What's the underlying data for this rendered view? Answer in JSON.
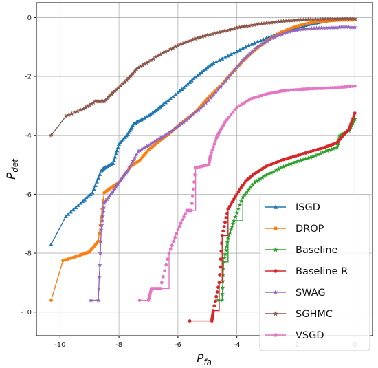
{
  "chart_data": {
    "type": "line",
    "xlabel": "P",
    "xlabel_sub": "fa",
    "ylabel": "P",
    "ylabel_sub": "det",
    "xlim": [
      -10.8,
      0.6
    ],
    "ylim": [
      -10.8,
      0.5
    ],
    "grid": true,
    "legend_position": "bottom-right",
    "x_ticks": [
      -10,
      -8,
      -6,
      -4,
      -2,
      0
    ],
    "y_ticks": [
      -10,
      -8,
      -6,
      -4,
      -2,
      0
    ],
    "series": [
      {
        "name": " ISGD",
        "color": "#1f77b4",
        "marker": "triangle",
        "x": [
          -10.3,
          -9.8,
          -9.3,
          -8.9,
          -8.6,
          -8.5,
          -8.2,
          -8.0,
          -7.7,
          -7.5,
          -7.2,
          -6.8,
          -6.5,
          -6.0,
          -5.6,
          -5.2,
          -4.8,
          -4.2,
          -3.6,
          -3.0,
          -2.5,
          -2.0,
          -1.5,
          -1.0,
          -0.5,
          0.0
        ],
        "y": [
          -7.7,
          -6.75,
          -6.3,
          -5.95,
          -5.2,
          -5.1,
          -4.95,
          -4.3,
          -3.95,
          -3.6,
          -3.45,
          -3.2,
          -2.95,
          -2.55,
          -2.2,
          -1.85,
          -1.55,
          -1.25,
          -0.95,
          -0.7,
          -0.5,
          -0.35,
          -0.22,
          -0.12,
          -0.06,
          -0.05
        ]
      },
      {
        "name": "DROP",
        "color": "#ff7f0e",
        "marker": "circle",
        "x": [
          -10.3,
          -9.9,
          -9.4,
          -9.0,
          -8.7,
          -8.5,
          -8.3,
          -8.0,
          -7.6,
          -7.3,
          -7.0,
          -6.7,
          -6.3,
          -5.9,
          -5.4,
          -5.0,
          -4.5,
          -4.0,
          -3.5,
          -3.0,
          -2.5,
          -2.0,
          -1.5,
          -1.0,
          -0.5,
          0.0
        ],
        "y": [
          -9.6,
          -8.25,
          -8.1,
          -7.95,
          -7.6,
          -5.95,
          -5.8,
          -5.6,
          -5.05,
          -4.85,
          -4.5,
          -4.25,
          -3.95,
          -3.6,
          -3.2,
          -2.75,
          -2.25,
          -1.7,
          -1.2,
          -0.8,
          -0.5,
          -0.3,
          -0.18,
          -0.12,
          -0.09,
          -0.08
        ]
      },
      {
        "name": "Baseline",
        "color": "#2ca02c",
        "marker": "star",
        "x": [
          -4.65,
          -4.5,
          -4.45,
          -4.3,
          -4.1,
          -3.8,
          -3.4,
          -3.0,
          -2.5,
          -2.0,
          -1.5,
          -1.0,
          -0.6,
          -0.5,
          -0.2,
          0.0
        ],
        "y": [
          -9.6,
          -9.6,
          -8.3,
          -7.5,
          -6.9,
          -6.1,
          -5.6,
          -5.35,
          -5.1,
          -4.9,
          -4.75,
          -4.55,
          -4.4,
          -4.0,
          -3.85,
          -3.45
        ]
      },
      {
        "name": "Baseline R",
        "color": "#d62728",
        "marker": "circle",
        "x": [
          -5.6,
          -4.85,
          -4.8,
          -4.6,
          -4.5,
          -4.3,
          -4.0,
          -3.7,
          -3.4,
          -3.0,
          -2.5,
          -2.0,
          -1.5,
          -1.0,
          -0.6,
          -0.4,
          -0.2,
          0.0
        ],
        "y": [
          -10.3,
          -10.3,
          -9.95,
          -9.0,
          -7.4,
          -6.5,
          -6.0,
          -5.55,
          -5.3,
          -5.05,
          -4.85,
          -4.7,
          -4.55,
          -4.4,
          -4.25,
          -4.0,
          -3.8,
          -3.25
        ]
      },
      {
        "name": "SWAG",
        "color": "#9467bd",
        "marker": "star",
        "x": [
          -8.95,
          -8.7,
          -8.6,
          -8.5,
          -8.2,
          -8.0,
          -7.7,
          -7.35,
          -7.0,
          -6.6,
          -6.2,
          -5.8,
          -5.3,
          -4.8,
          -4.3,
          -3.8,
          -3.3,
          -2.8,
          -2.3,
          -1.8,
          -1.3,
          -0.8,
          -0.4,
          0.0
        ],
        "y": [
          -9.6,
          -9.6,
          -7.2,
          -6.3,
          -5.9,
          -5.6,
          -5.2,
          -4.55,
          -4.35,
          -4.1,
          -3.85,
          -3.55,
          -3.15,
          -2.65,
          -2.05,
          -1.45,
          -1.0,
          -0.7,
          -0.5,
          -0.4,
          -0.36,
          -0.34,
          -0.33,
          -0.33
        ]
      },
      {
        "name": "SGHMC",
        "color": "#8c564b",
        "marker": "star",
        "x": [
          -10.3,
          -9.8,
          -9.2,
          -8.8,
          -8.5,
          -8.2,
          -7.8,
          -7.4,
          -7.0,
          -6.5,
          -6.0,
          -5.5,
          -5.0,
          -4.5,
          -4.0,
          -3.5,
          -3.0,
          -2.5,
          -2.0,
          -1.5,
          -1.0,
          -0.5,
          0.0
        ],
        "y": [
          -4.0,
          -3.35,
          -3.1,
          -2.85,
          -2.85,
          -2.55,
          -2.2,
          -1.75,
          -1.5,
          -1.2,
          -0.95,
          -0.75,
          -0.6,
          -0.48,
          -0.35,
          -0.26,
          -0.19,
          -0.13,
          -0.09,
          -0.06,
          -0.05,
          -0.04,
          -0.04
        ]
      },
      {
        "name": "VSGD",
        "color": "#e377c2",
        "marker": "circle",
        "x": [
          -7.3,
          -7.0,
          -6.9,
          -6.6,
          -6.3,
          -6.0,
          -5.7,
          -5.55,
          -5.4,
          -4.95,
          -4.9,
          -4.7,
          -4.6,
          -4.4,
          -4.0,
          -3.5,
          -3.0,
          -2.5,
          -2.0,
          -1.5,
          -1.0,
          -0.5,
          0.0
        ],
        "y": [
          -9.6,
          -9.6,
          -9.2,
          -9.2,
          -8.0,
          -7.2,
          -6.55,
          -6.55,
          -5.1,
          -5.0,
          -4.7,
          -4.1,
          -3.9,
          -3.55,
          -3.05,
          -2.75,
          -2.6,
          -2.5,
          -2.45,
          -2.42,
          -2.4,
          -2.37,
          -2.33
        ]
      }
    ]
  }
}
